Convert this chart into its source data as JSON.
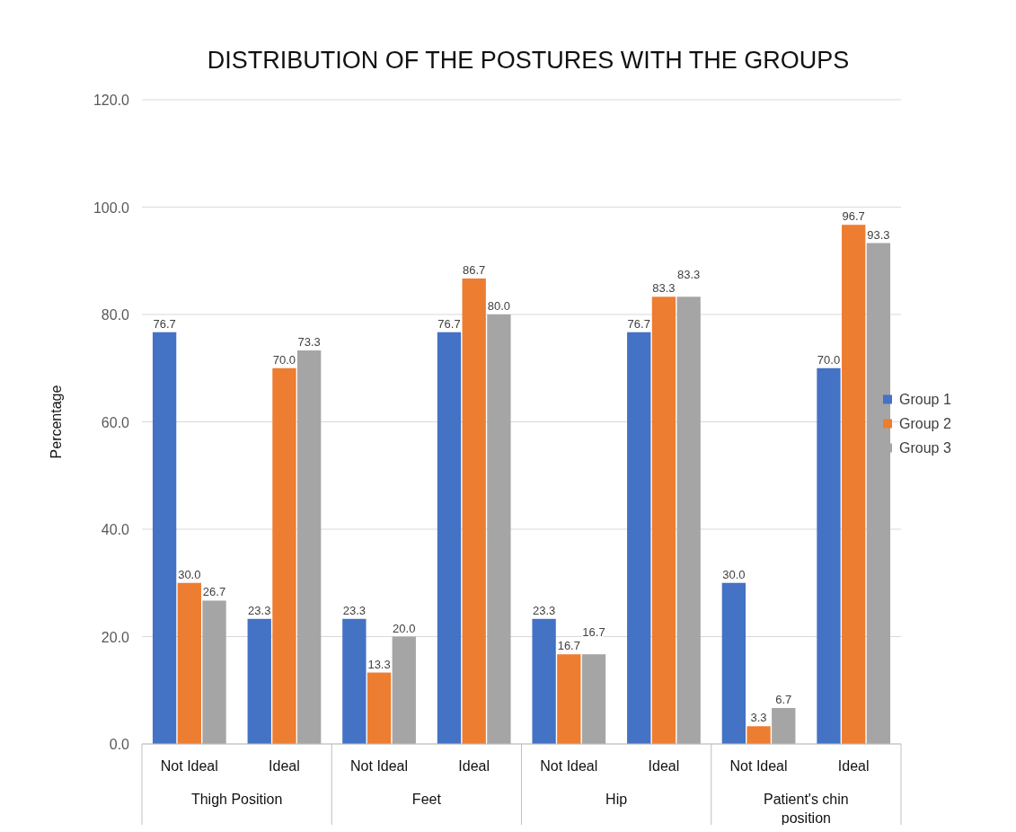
{
  "chart_data": {
    "type": "bar",
    "title": "DISTRIBUTION OF THE POSTURES WITH THE GROUPS",
    "ylabel": "Percentage",
    "categories": [
      "Not Ideal",
      "Ideal",
      "Not Ideal",
      "Ideal",
      "Not Ideal",
      "Ideal",
      "Not Ideal",
      "Ideal"
    ],
    "annotations": [
      "Thigh Position",
      "Feet",
      "Hip",
      "Patient's chin position"
    ],
    "series": [
      {
        "name": "Group 1",
        "color": "#4472c4",
        "values": [
          76.7,
          23.3,
          23.3,
          76.7,
          23.3,
          76.7,
          30.0,
          70.0
        ],
        "value_labels": [
          "76.7",
          "23.3",
          "23.3",
          "76.7",
          "23.3",
          "76.7",
          "30.0",
          "70.0"
        ]
      },
      {
        "name": "Group 2",
        "color": "#ed7d31",
        "values": [
          30.0,
          70.0,
          13.3,
          86.7,
          16.7,
          83.3,
          3.3,
          96.7
        ],
        "value_labels": [
          "30.0",
          "70.0",
          "13.3",
          "86.7",
          "16.7",
          "83.3",
          "3.3",
          "96.7"
        ]
      },
      {
        "name": "Group 3",
        "color": "#a5a5a5",
        "values": [
          26.7,
          73.3,
          20.0,
          80.0,
          16.7,
          83.3,
          6.7,
          93.3
        ],
        "value_labels": [
          "26.7",
          "73.3",
          "20.0",
          "80.0",
          "16.7",
          "83.3",
          "6.7",
          "93.3"
        ]
      }
    ],
    "ylim": [
      0,
      120
    ],
    "yticks": [
      {
        "value": 0,
        "label": "0.0"
      },
      {
        "value": 20,
        "label": "20.0"
      },
      {
        "value": 40,
        "label": "40.0"
      },
      {
        "value": 60,
        "label": "60.0"
      },
      {
        "value": 80,
        "label": "80.0"
      },
      {
        "value": 100,
        "label": "100.0"
      },
      {
        "value": 120,
        "label": "120.0"
      }
    ],
    "grid": "y",
    "legend": "right"
  }
}
